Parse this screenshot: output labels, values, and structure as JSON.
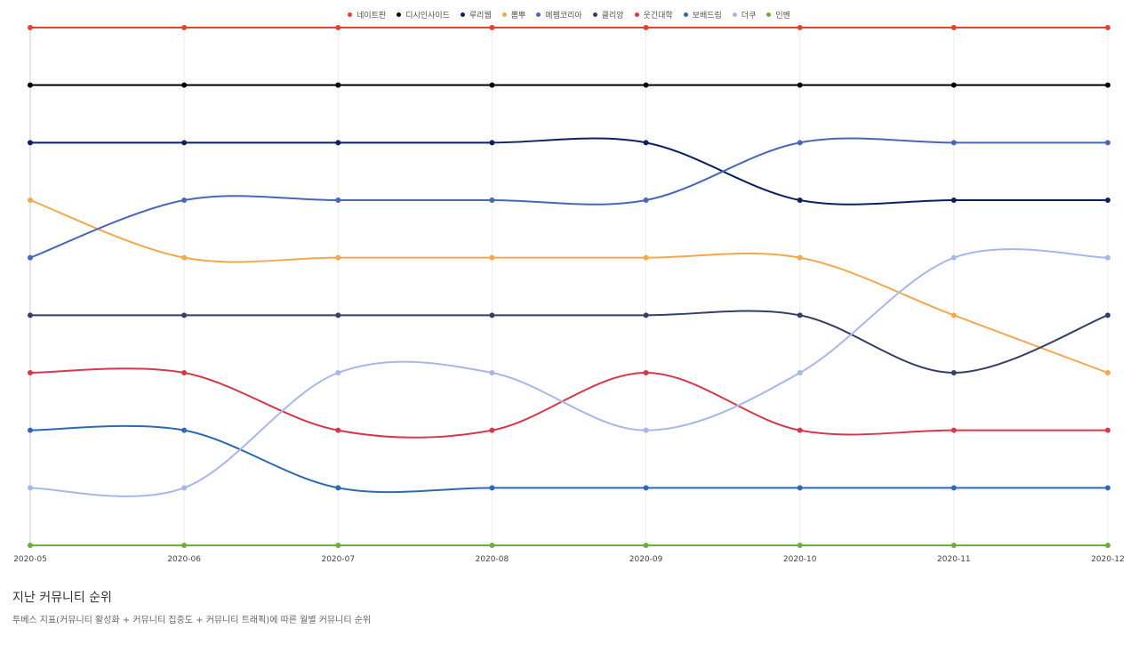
{
  "chart_data": {
    "type": "line",
    "title": "지난 커뮤니티 순위",
    "subtitle": "투베스 지표(커뮤니티 활성화 + 커뮤니티 집중도 + 커뮤니티 트래픽)에 따른 월별 커뮤니티 순위",
    "categories": [
      "2020-05",
      "2020-06",
      "2020-07",
      "2020-08",
      "2020-09",
      "2020-10",
      "2020-11",
      "2020-12"
    ],
    "ylim": [
      10,
      1
    ],
    "grid": true,
    "legend": "top",
    "series": [
      {
        "name": "네이트판",
        "color": "#e4432d",
        "values": [
          1,
          1,
          1,
          1,
          1,
          1,
          1,
          1
        ]
      },
      {
        "name": "디시인사이드",
        "color": "#000000",
        "values": [
          2,
          2,
          2,
          2,
          2,
          2,
          2,
          2
        ]
      },
      {
        "name": "루리웹",
        "color": "#0b2163",
        "values": [
          3,
          3,
          3,
          3,
          3,
          4,
          4,
          4
        ]
      },
      {
        "name": "뽐뿌",
        "color": "#f2a84f",
        "values": [
          4,
          5,
          5,
          5,
          5,
          5,
          6,
          7
        ]
      },
      {
        "name": "에펨코리아",
        "color": "#4967b8",
        "values": [
          5,
          4,
          4,
          4,
          4,
          3,
          3,
          3
        ]
      },
      {
        "name": "클리앙",
        "color": "#353f67",
        "values": [
          6,
          6,
          6,
          6,
          6,
          6,
          7,
          6
        ]
      },
      {
        "name": "웃긴대학",
        "color": "#d5394b",
        "values": [
          7,
          7,
          8,
          8,
          7,
          8,
          8,
          8
        ]
      },
      {
        "name": "보배드림",
        "color": "#2e69b3",
        "values": [
          8,
          8,
          9,
          9,
          9,
          9,
          9,
          9
        ]
      },
      {
        "name": "더쿠",
        "color": "#a8b7ea",
        "values": [
          9,
          9,
          7,
          7,
          8,
          7,
          5,
          5
        ]
      },
      {
        "name": "인벤",
        "color": "#6dae3c",
        "values": [
          10,
          10,
          10,
          10,
          10,
          10,
          10,
          10
        ]
      }
    ]
  }
}
